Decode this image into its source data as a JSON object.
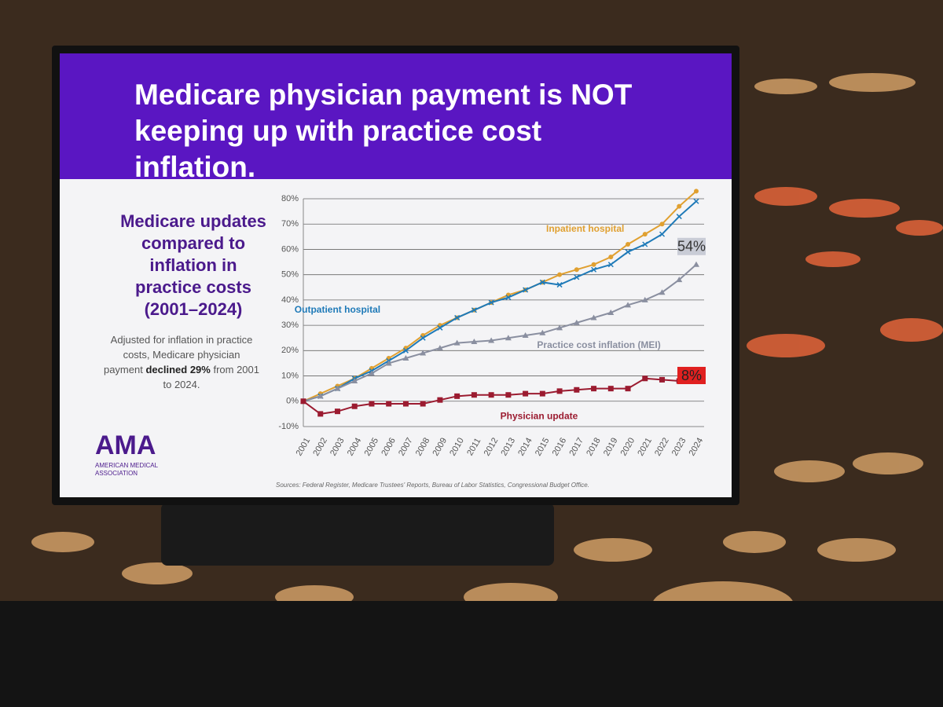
{
  "slide": {
    "title": "Medicare physician payment is NOT keeping up with practice cost inflation.",
    "side_heading": "Medicare updates compared to inflation in practice costs (2001–2024)",
    "note_start": "Adjusted for inflation in practice costs, Medicare physician payment",
    "note_bold": "declined 29%",
    "note_end": "from 2001 to 2024.",
    "logo": "AMA",
    "logo_sub": "AMERICAN MEDICAL ASSOCIATION",
    "sources": "Sources: Federal Register, Medicare Trustees' Reports, Bureau of Labor Statistics, Congressional Budget Office."
  },
  "chart_data": {
    "type": "line",
    "x": [
      2001,
      2002,
      2003,
      2004,
      2005,
      2006,
      2007,
      2008,
      2009,
      2010,
      2011,
      2012,
      2013,
      2014,
      2015,
      2016,
      2017,
      2018,
      2019,
      2020,
      2021,
      2022,
      2023,
      2024
    ],
    "xlim": [
      2001,
      2024
    ],
    "ylim": [
      -10,
      80
    ],
    "yticks": [
      {
        "value": -10,
        "label": "-10%"
      },
      {
        "value": 0,
        "label": "0%"
      },
      {
        "value": 10,
        "label": "10%"
      },
      {
        "value": 20,
        "label": "20%"
      },
      {
        "value": 30,
        "label": "30%"
      },
      {
        "value": 40,
        "label": "40%"
      },
      {
        "value": 50,
        "label": "50%"
      },
      {
        "value": 60,
        "label": "60%"
      },
      {
        "value": 70,
        "label": "70%"
      },
      {
        "value": 80,
        "label": "80%"
      }
    ],
    "grid": true,
    "series": [
      {
        "name": "Inpatient hospital",
        "color": "#e0a030",
        "marker": "circle",
        "values": [
          0,
          3,
          6,
          9,
          13,
          17,
          21,
          26,
          30,
          33,
          36,
          39,
          42,
          44,
          47,
          50,
          52,
          54,
          57,
          62,
          66,
          70,
          77,
          83
        ]
      },
      {
        "name": "Outpatient hospital",
        "color": "#1f7ab8",
        "marker": "x",
        "values": [
          0,
          2,
          5,
          9,
          12,
          16,
          20,
          25,
          29,
          33,
          36,
          39,
          41,
          44,
          47,
          46,
          49,
          52,
          54,
          59,
          62,
          66,
          73,
          79
        ]
      },
      {
        "name": "Practice cost inflation (MEI)",
        "color": "#8a8fa0",
        "marker": "triangle",
        "end_label": "54%",
        "values": [
          0,
          2,
          5,
          8,
          11,
          15,
          17,
          19,
          21,
          23,
          23.5,
          24,
          25,
          26,
          27,
          29,
          31,
          33,
          35,
          38,
          40,
          43,
          48,
          54
        ]
      },
      {
        "name": "Physician update",
        "color": "#9b1b30",
        "marker": "square",
        "end_label": "8%",
        "values": [
          0,
          -5,
          -4,
          -2,
          -1,
          -1,
          -1,
          -1,
          0.5,
          2,
          2.5,
          2.5,
          2.5,
          3,
          3,
          4,
          4.5,
          5,
          5,
          5,
          9,
          8.5,
          8,
          8
        ]
      }
    ]
  }
}
